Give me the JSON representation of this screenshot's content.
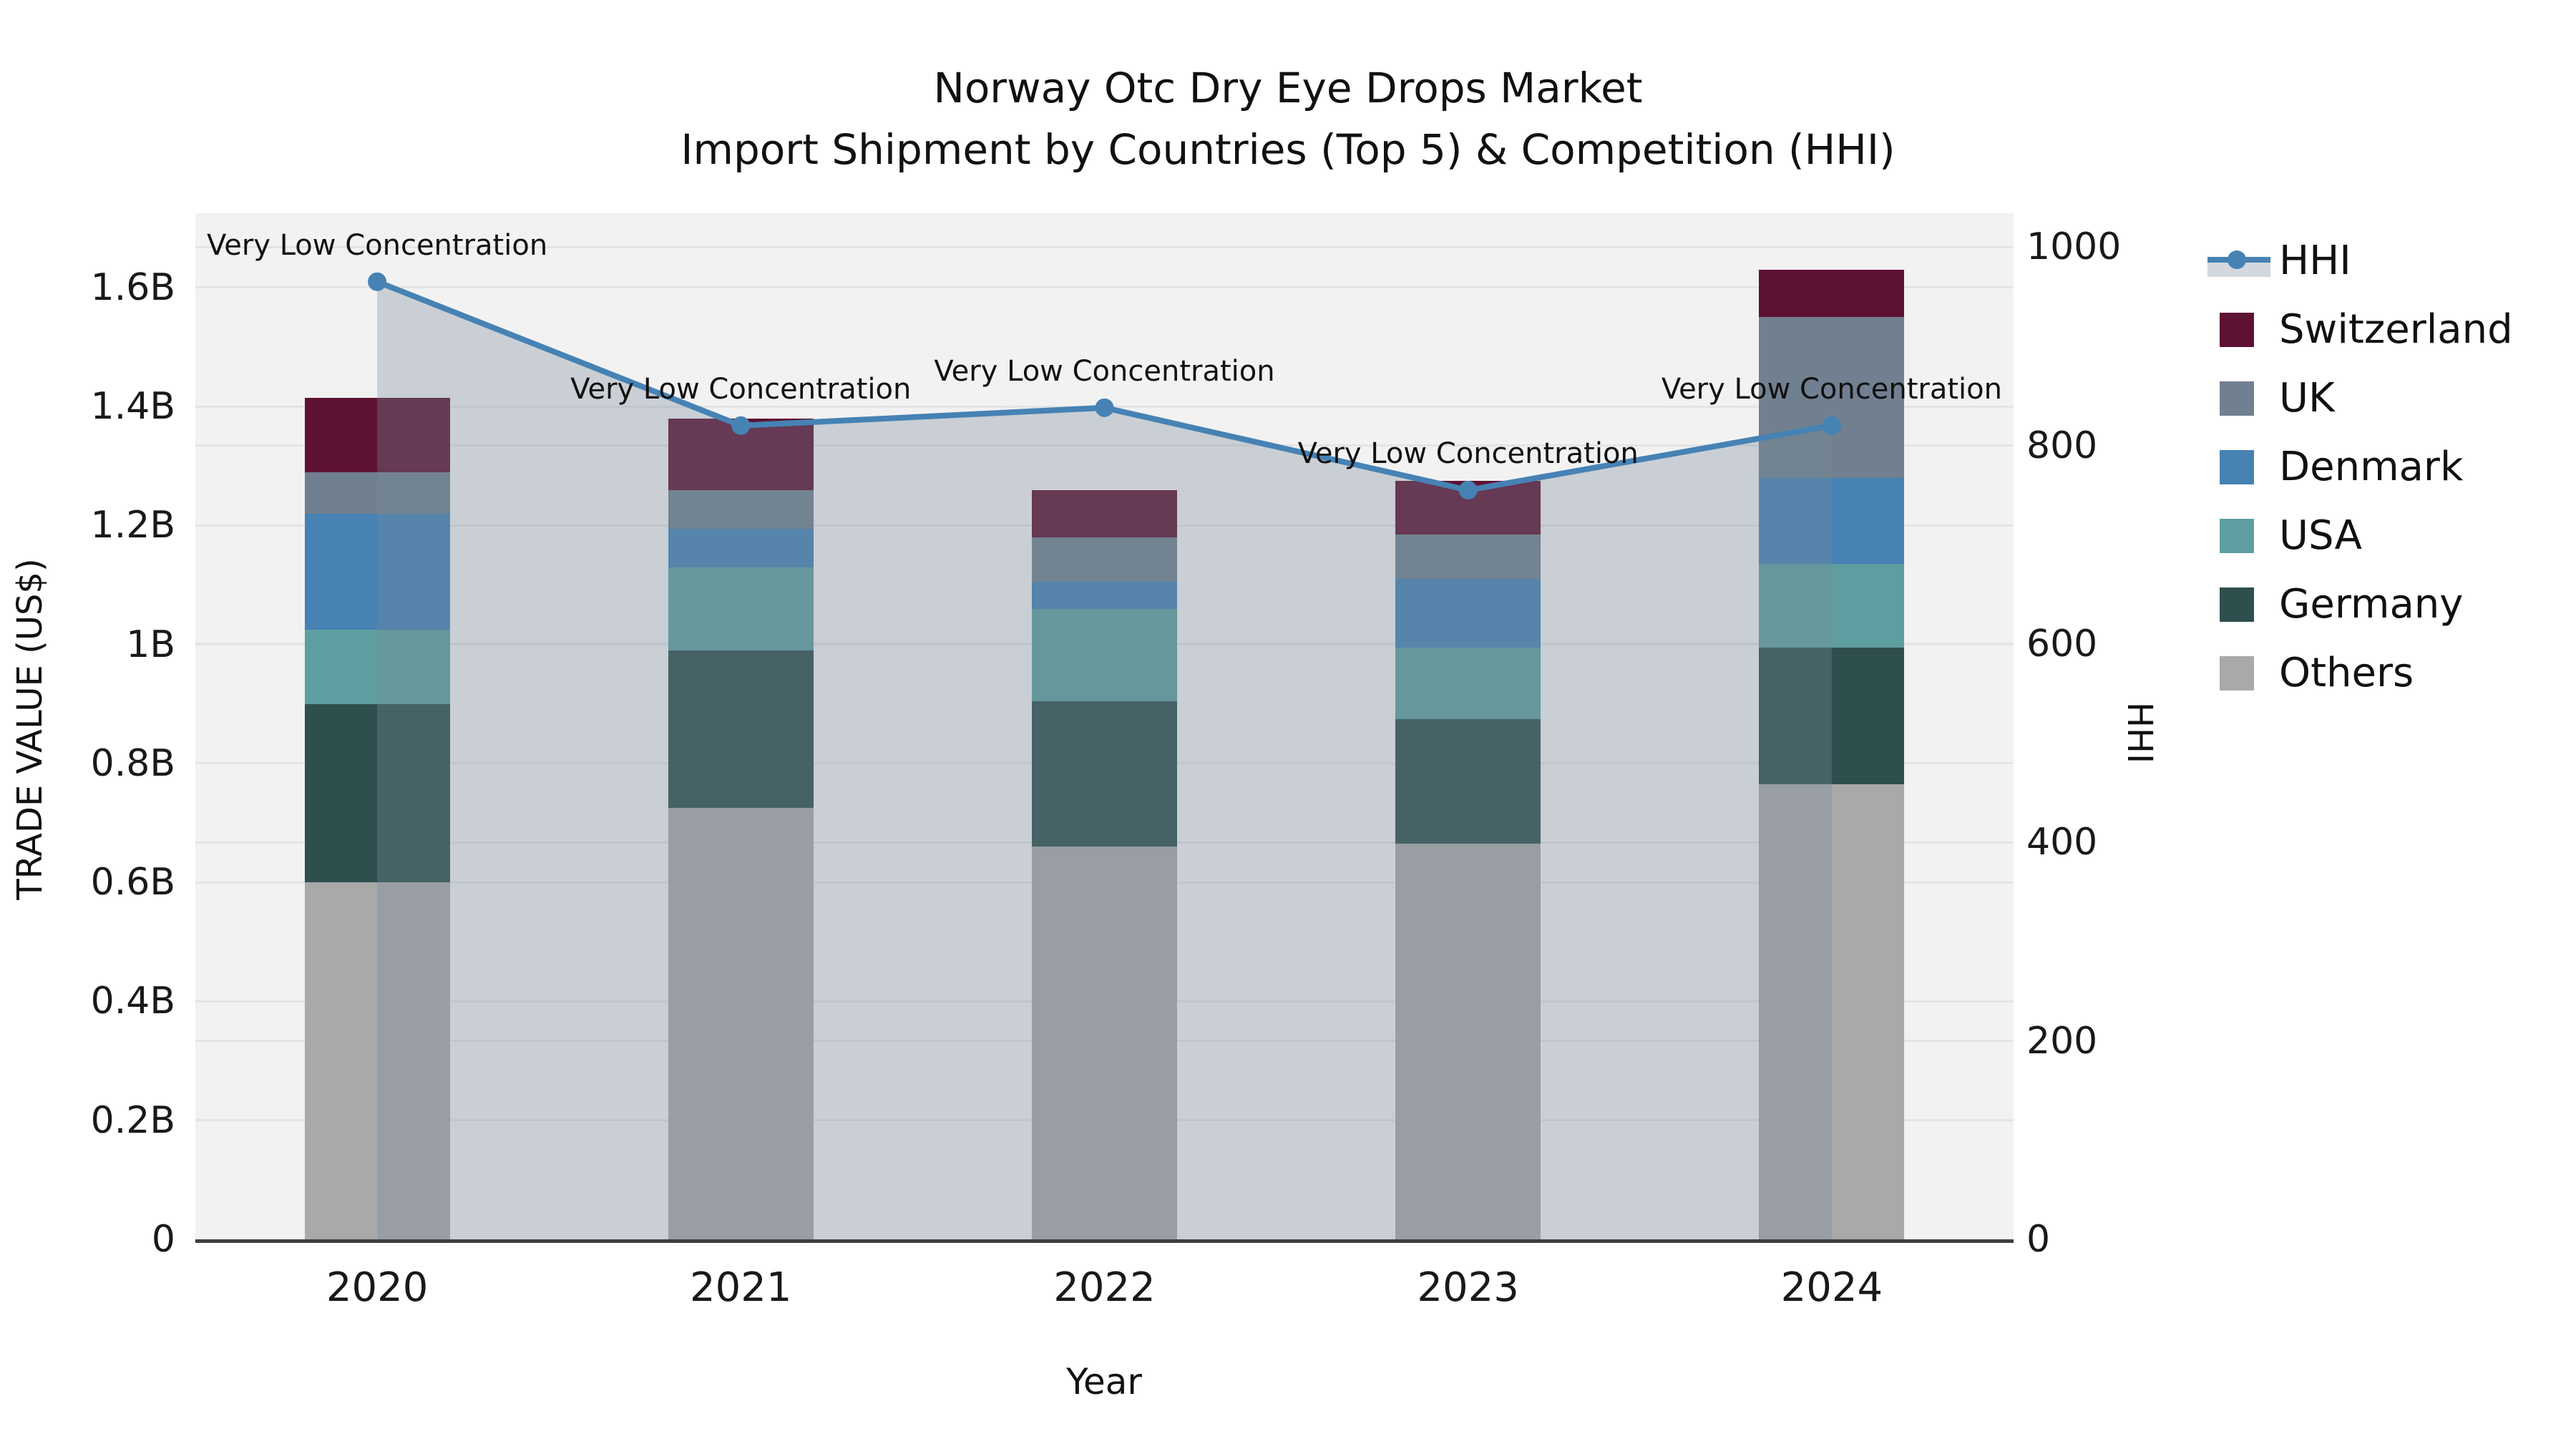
{
  "title": {
    "line1": "Norway Otc Dry Eye Drops Market",
    "line2": "Import Shipment by Countries (Top 5) & Competition (HHI)"
  },
  "axes": {
    "left": {
      "label": "TRADE VALUE (US$)",
      "unit": "billion US$",
      "ticks": [
        {
          "label": "0",
          "value": 0
        },
        {
          "label": "0.2B",
          "value": 0.2
        },
        {
          "label": "0.4B",
          "value": 0.4
        },
        {
          "label": "0.6B",
          "value": 0.6
        },
        {
          "label": "0.8B",
          "value": 0.8
        },
        {
          "label": "1B",
          "value": 1.0
        },
        {
          "label": "1.2B",
          "value": 1.2
        },
        {
          "label": "1.4B",
          "value": 1.4
        },
        {
          "label": "1.6B",
          "value": 1.6
        }
      ],
      "range": [
        0,
        1.725
      ]
    },
    "right": {
      "label": "HHI",
      "ticks": [
        {
          "label": "0",
          "value": 0
        },
        {
          "label": "200",
          "value": 200
        },
        {
          "label": "400",
          "value": 400
        },
        {
          "label": "600",
          "value": 600
        },
        {
          "label": "800",
          "value": 800
        },
        {
          "label": "1000",
          "value": 1000
        }
      ],
      "range": [
        0,
        1034
      ]
    },
    "x": {
      "label": "Year",
      "ticks": [
        "2020",
        "2021",
        "2022",
        "2023",
        "2024"
      ]
    }
  },
  "chart_data": {
    "type": "stacked-bar+line",
    "categories": [
      "2020",
      "2021",
      "2022",
      "2023",
      "2024"
    ],
    "value_unit": "billion US$",
    "series": [
      {
        "name": "Others",
        "color": "#a9a9a9",
        "values": [
          0.6,
          0.725,
          0.66,
          0.665,
          0.765
        ]
      },
      {
        "name": "Germany",
        "color": "#2f4f4f",
        "values": [
          0.3,
          0.265,
          0.245,
          0.21,
          0.23
        ]
      },
      {
        "name": "USA",
        "color": "#5f9ea0",
        "values": [
          0.125,
          0.14,
          0.155,
          0.12,
          0.14
        ]
      },
      {
        "name": "Denmark",
        "color": "#4682b4",
        "values": [
          0.195,
          0.065,
          0.045,
          0.115,
          0.145
        ]
      },
      {
        "name": "UK",
        "color": "#708090",
        "values": [
          0.07,
          0.065,
          0.075,
          0.075,
          0.27
        ]
      },
      {
        "name": "Switzerland",
        "color": "#5e1233",
        "values": [
          0.125,
          0.12,
          0.08,
          0.09,
          0.08
        ]
      }
    ],
    "bar_totals": [
      1.415,
      1.38,
      1.26,
      1.275,
      1.63
    ],
    "line_series": {
      "name": "HHI",
      "axis": "right",
      "color": "#4682b4",
      "area_fill": "rgba(119,136,153,0.33)",
      "values": [
        965,
        820,
        838,
        755,
        820
      ]
    },
    "annotations": [
      "Very Low Concentration",
      "Very Low Concentration",
      "Very Low Concentration",
      "Very Low Concentration",
      "Very Low Concentration"
    ],
    "legend_position": "right",
    "grid": true,
    "plot_background": "#f2f2f2",
    "gridline_color": "#e4e4e4",
    "bottom_spine_color": "#3e3e3e"
  },
  "legend": {
    "items": [
      {
        "label": "HHI",
        "type": "line",
        "color": "#4682b4",
        "band": "rgba(119,136,153,0.33)"
      },
      {
        "label": "Switzerland",
        "type": "swatch",
        "color": "#5e1233"
      },
      {
        "label": "UK",
        "type": "swatch",
        "color": "#708090"
      },
      {
        "label": "Denmark",
        "type": "swatch",
        "color": "#4682b4"
      },
      {
        "label": "USA",
        "type": "swatch",
        "color": "#5f9ea0"
      },
      {
        "label": "Germany",
        "type": "swatch",
        "color": "#2f4f4f"
      },
      {
        "label": "Others",
        "type": "swatch",
        "color": "#a9a9a9"
      }
    ]
  }
}
